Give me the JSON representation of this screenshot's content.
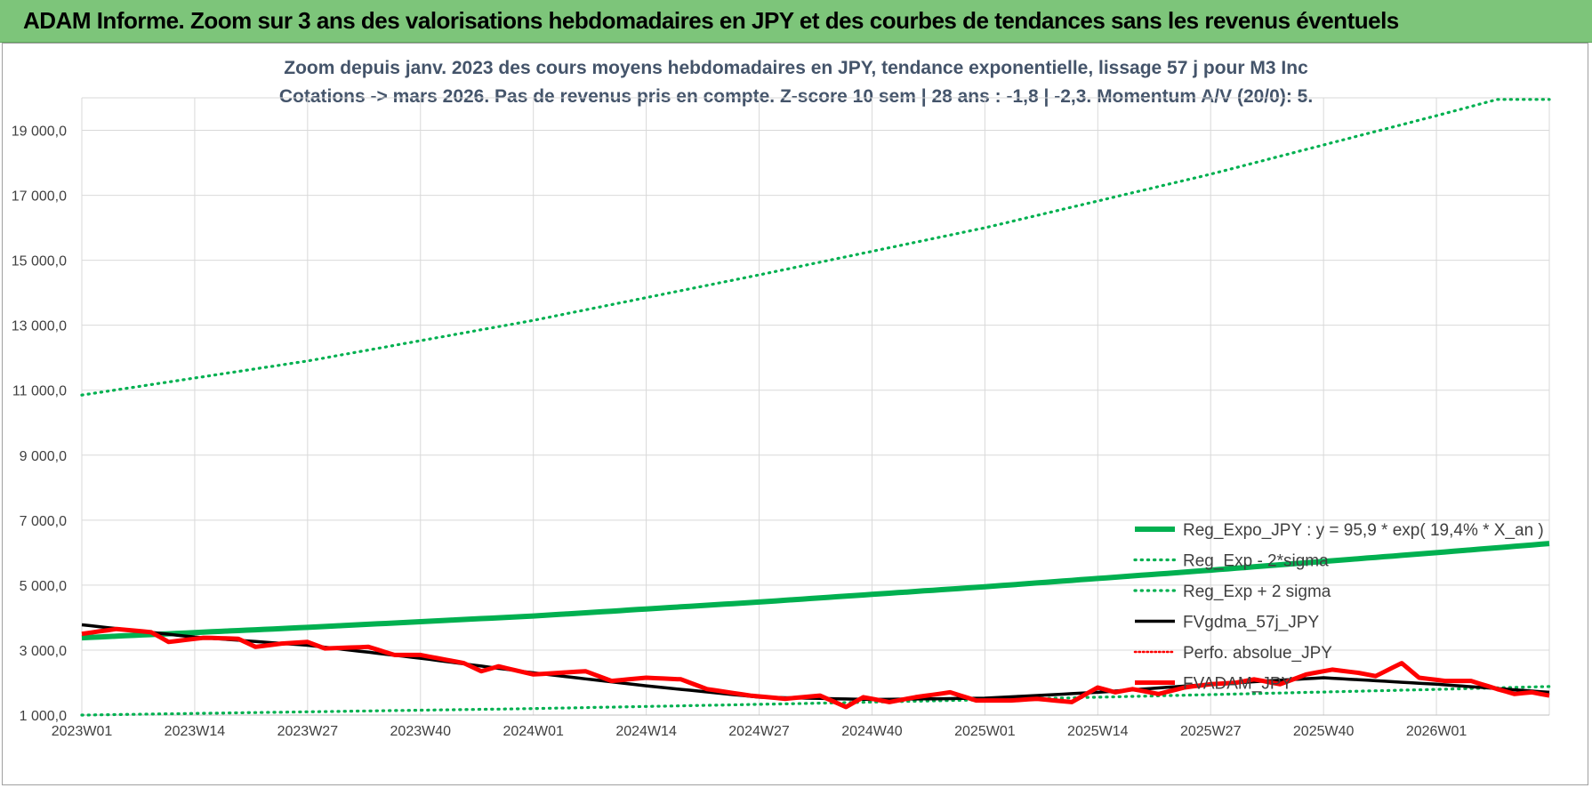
{
  "banner": {
    "title": "ADAM Informe. Zoom sur 3 ans des valorisations hebdomadaires en JPY et des courbes de tendances sans les revenus éventuels"
  },
  "chart_data": {
    "type": "line",
    "title": "Zoom depuis janv. 2023 des cours moyens hebdomadaires en JPY, tendance exponentielle, lissage 57 j pour M3 Inc",
    "subtitle": "Cotations -> mars 2026. Pas de revenus pris en compte. Z-score 10 sem | 28 ans : -1,8 | -2,3. Momentum A/V (20/0): 5.",
    "ylim": [
      1000,
      20000
    ],
    "yticks": [
      "1 000,0",
      "3 000,0",
      "5 000,0",
      "7 000,0",
      "9 000,0",
      "11 000,0",
      "13 000,0",
      "15 000,0",
      "17 000,0",
      "19 000,0"
    ],
    "ytick_values": [
      1000,
      3000,
      5000,
      7000,
      9000,
      11000,
      13000,
      15000,
      17000,
      19000
    ],
    "xticks": [
      "2023W01",
      "2023W14",
      "2023W27",
      "2023W40",
      "2024W01",
      "2024W14",
      "2024W27",
      "2024W40",
      "2025W01",
      "2025W14",
      "2025W27",
      "2025W40",
      "2026W01"
    ],
    "xtick_index": [
      0,
      13,
      26,
      39,
      52,
      65,
      78,
      91,
      104,
      117,
      130,
      143,
      156
    ],
    "x_count": 170,
    "grid": true,
    "legend_position": "bottom-right",
    "colors": {
      "trend": "#00b050",
      "band": "#00b050",
      "smooth": "#000000",
      "perf": "#ff0000",
      "price": "#ff0000",
      "grid": "#d9d9d9",
      "axis": "#bfbfbf"
    },
    "series": [
      {
        "name": "Reg_Expo_JPY : y = 95,9 * exp( 19,4% *  X_an )",
        "key": "trend",
        "style": "solid-thick",
        "anchors": [
          [
            0,
            3380
          ],
          [
            26,
            3700
          ],
          [
            52,
            4050
          ],
          [
            78,
            4480
          ],
          [
            104,
            4950
          ],
          [
            130,
            5460
          ],
          [
            156,
            6000
          ],
          [
            169,
            6280
          ]
        ]
      },
      {
        "name": "Reg_Exp - 2*sigma",
        "key": "lower",
        "style": "dotted",
        "anchors": [
          [
            0,
            1000
          ],
          [
            26,
            1100
          ],
          [
            52,
            1200
          ],
          [
            78,
            1330
          ],
          [
            104,
            1470
          ],
          [
            130,
            1630
          ],
          [
            156,
            1790
          ],
          [
            169,
            1880
          ]
        ]
      },
      {
        "name": "Reg_Exp + 2 sigma",
        "key": "upper",
        "style": "dotted",
        "anchors": [
          [
            0,
            10850
          ],
          [
            26,
            11900
          ],
          [
            52,
            13150
          ],
          [
            78,
            14550
          ],
          [
            104,
            16000
          ],
          [
            130,
            17650
          ],
          [
            156,
            19450
          ],
          [
            163,
            19950
          ],
          [
            169,
            19950
          ]
        ]
      },
      {
        "name": "FVgdma_57j_JPY",
        "key": "smooth",
        "style": "solid",
        "anchors": [
          [
            0,
            3780
          ],
          [
            13,
            3400
          ],
          [
            26,
            3150
          ],
          [
            39,
            2750
          ],
          [
            52,
            2300
          ],
          [
            65,
            1900
          ],
          [
            78,
            1550
          ],
          [
            91,
            1480
          ],
          [
            104,
            1520
          ],
          [
            117,
            1700
          ],
          [
            130,
            1950
          ],
          [
            143,
            2150
          ],
          [
            156,
            1950
          ],
          [
            169,
            1700
          ]
        ]
      },
      {
        "name": "Perfo. absolue_JPY",
        "key": "perf",
        "style": "dotted-thin",
        "anchors": []
      },
      {
        "name": "FVADAM_JPY",
        "key": "price",
        "style": "solid-thick",
        "anchors": [
          [
            0,
            3500
          ],
          [
            4,
            3650
          ],
          [
            8,
            3550
          ],
          [
            10,
            3250
          ],
          [
            14,
            3380
          ],
          [
            18,
            3350
          ],
          [
            20,
            3100
          ],
          [
            23,
            3200
          ],
          [
            26,
            3250
          ],
          [
            28,
            3050
          ],
          [
            33,
            3100
          ],
          [
            36,
            2850
          ],
          [
            39,
            2850
          ],
          [
            44,
            2600
          ],
          [
            46,
            2350
          ],
          [
            48,
            2500
          ],
          [
            52,
            2250
          ],
          [
            55,
            2300
          ],
          [
            58,
            2350
          ],
          [
            61,
            2050
          ],
          [
            65,
            2150
          ],
          [
            69,
            2100
          ],
          [
            72,
            1800
          ],
          [
            77,
            1600
          ],
          [
            81,
            1500
          ],
          [
            85,
            1600
          ],
          [
            88,
            1250
          ],
          [
            90,
            1550
          ],
          [
            93,
            1400
          ],
          [
            96,
            1550
          ],
          [
            100,
            1700
          ],
          [
            103,
            1450
          ],
          [
            107,
            1450
          ],
          [
            110,
            1500
          ],
          [
            114,
            1400
          ],
          [
            117,
            1850
          ],
          [
            119,
            1700
          ],
          [
            121,
            1800
          ],
          [
            124,
            1650
          ],
          [
            127,
            1850
          ],
          [
            130,
            1950
          ],
          [
            133,
            2000
          ],
          [
            135,
            2100
          ],
          [
            138,
            1950
          ],
          [
            141,
            2250
          ],
          [
            144,
            2400
          ],
          [
            147,
            2300
          ],
          [
            149,
            2200
          ],
          [
            152,
            2600
          ],
          [
            154,
            2150
          ],
          [
            157,
            2050
          ],
          [
            160,
            2050
          ],
          [
            163,
            1800
          ],
          [
            165,
            1650
          ],
          [
            167,
            1700
          ],
          [
            169,
            1600
          ]
        ]
      }
    ]
  }
}
